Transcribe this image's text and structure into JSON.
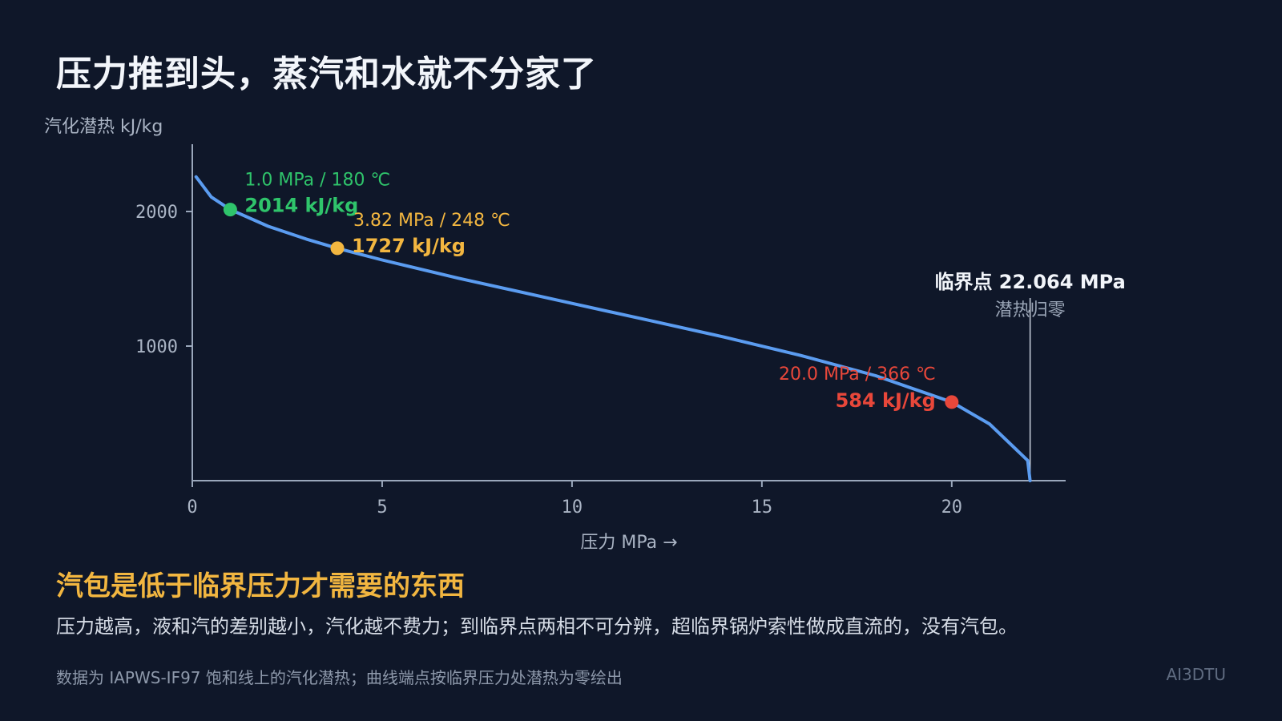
{
  "page": {
    "title": "压力推到头，蒸汽和水就不分家了",
    "subtitle": "汽包是低于临界压力才需要的东西",
    "body": "压力越高，液和汽的差别越小，汽化越不费力；到临界点两相不可分辨，超临界锅炉索性做成直流的，没有汽包。",
    "footnote": "数据为 IAPWS-IF97 饱和线上的汽化潜热；曲线端点按临界压力处潜热为零绘出",
    "brand": "AI3DTU"
  },
  "colors": {
    "background": "#0f1729",
    "curve": "#5b9cf0",
    "axis": "#9aa7bb",
    "green": "#2fc46b",
    "orange": "#f2b640",
    "red": "#e8473a",
    "critical": "#f2f5fa"
  },
  "chart_data": {
    "type": "line",
    "ylabel": "汽化潜热 kJ/kg",
    "xlabel": "压力  MPa →",
    "xlim": [
      0,
      23
    ],
    "ylim": [
      0,
      2500
    ],
    "xticks": [
      0,
      5,
      10,
      15,
      20
    ],
    "yticks": [
      1000,
      2000
    ],
    "grid": false,
    "series": [
      {
        "x": [
          0.1,
          0.5,
          1.0,
          2.0,
          3.0,
          3.82,
          5.0,
          7.0,
          10.0,
          12.0,
          14.0,
          16.0,
          18.0,
          20.0,
          21.0,
          22.0,
          22.064
        ],
        "y": [
          2258,
          2108,
          2014,
          1890,
          1795,
          1727,
          1640,
          1505,
          1317,
          1193,
          1067,
          932,
          780,
          584,
          420,
          150,
          0
        ]
      }
    ],
    "markers": [
      {
        "x": 1.0,
        "y": 2014,
        "label_top": "1.0 MPa / 180 ℃",
        "label_value": "2014 kJ/kg",
        "color": "green"
      },
      {
        "x": 3.82,
        "y": 1727,
        "label_top": "3.82 MPa / 248 ℃",
        "label_value": "1727 kJ/kg",
        "color": "orange"
      },
      {
        "x": 20.0,
        "y": 584,
        "label_top": "20.0 MPa / 366 ℃",
        "label_value": "584 kJ/kg",
        "color": "red"
      }
    ],
    "critical": {
      "x": 22.064,
      "label": "临界点 22.064 MPa",
      "sublabel": "潜热归零"
    }
  }
}
